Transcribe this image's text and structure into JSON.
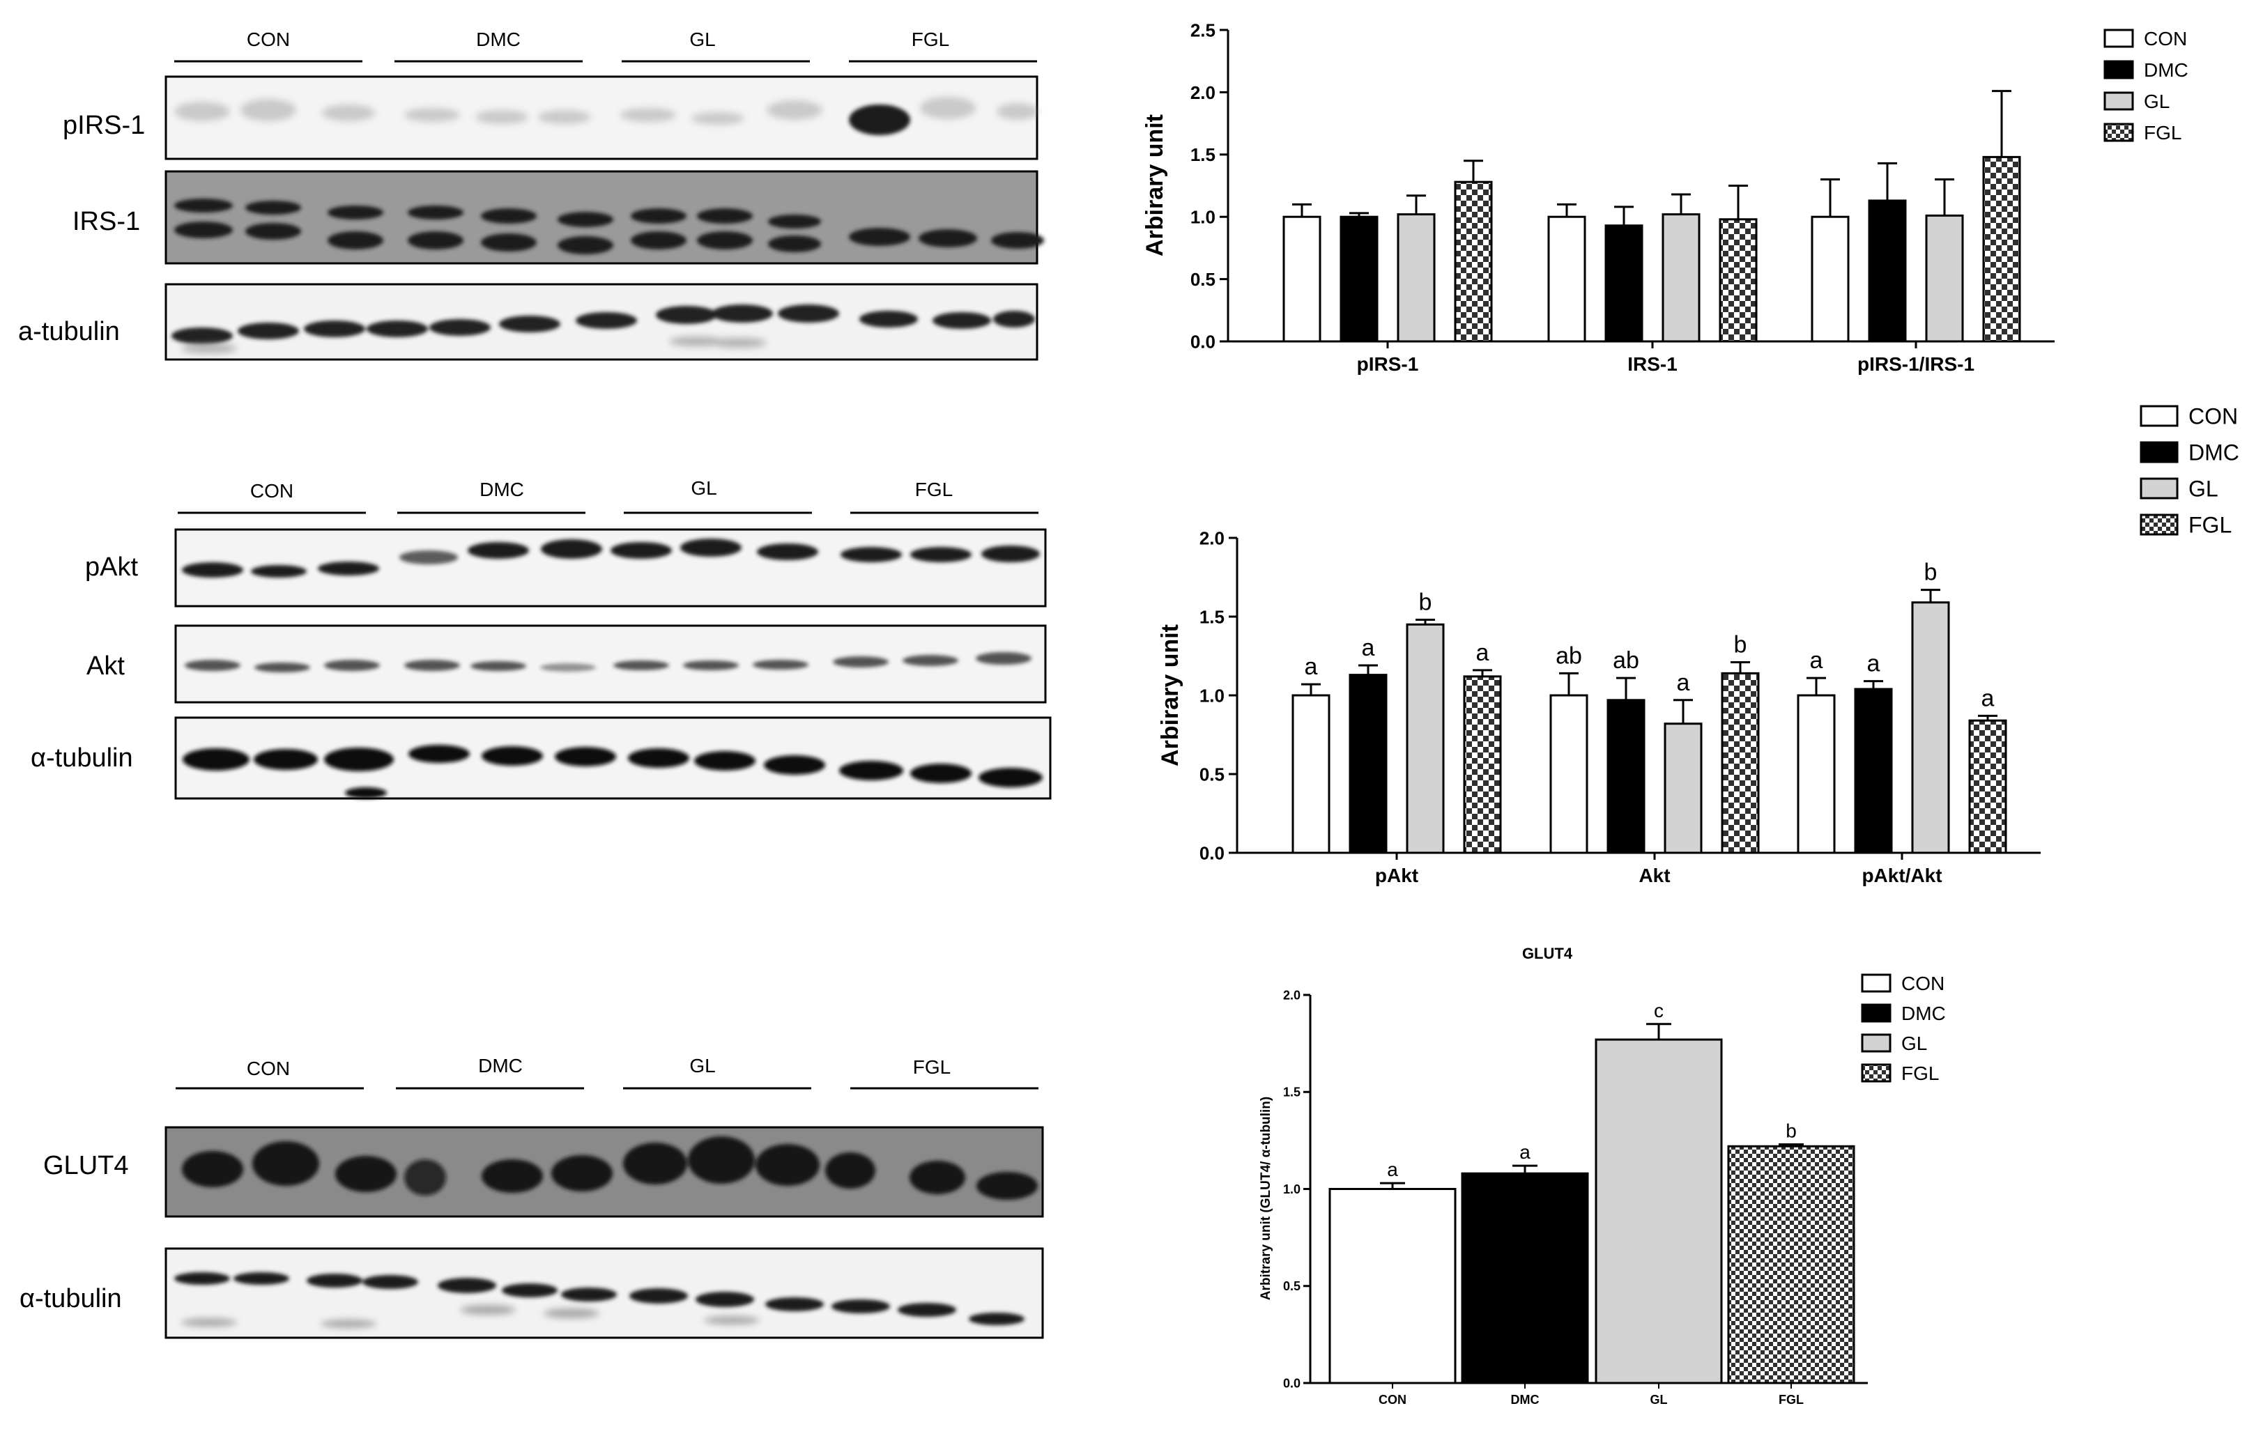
{
  "groups": [
    "CON",
    "DMC",
    "GL",
    "FGL"
  ],
  "colors": {
    "CON": "#ffffff",
    "DMC": "#000000",
    "GL": "#d3d3d3",
    "FGL": "checker"
  },
  "blots": [
    {
      "id": "irs",
      "group_labels": [
        "CON",
        "DMC",
        "GL",
        "FGL"
      ],
      "rows": [
        {
          "label": "pIRS-1",
          "style": "faint"
        },
        {
          "label": "IRS-1",
          "style": "dark"
        },
        {
          "label": "a-tubulin",
          "style": "light"
        }
      ]
    },
    {
      "id": "akt",
      "group_labels": [
        "CON",
        "DMC",
        "GL",
        "FGL"
      ],
      "rows": [
        {
          "label": "pAkt",
          "style": "mid"
        },
        {
          "label": "Akt",
          "style": "thin"
        },
        {
          "label": "α-tubulin",
          "style": "bold"
        }
      ]
    },
    {
      "id": "glut",
      "group_labels": [
        "CON",
        "DMC",
        "GL",
        "FGL"
      ],
      "rows": [
        {
          "label": "GLUT4",
          "style": "dark"
        },
        {
          "label": "α-tubulin",
          "style": "light"
        }
      ]
    }
  ],
  "chart_data": [
    {
      "type": "bar",
      "title": "",
      "ylabel": "Arbirary unit",
      "ylim": [
        0,
        2.5
      ],
      "yticks": [
        "0.0",
        "0.5",
        "1.0",
        "1.5",
        "2.0",
        "2.5"
      ],
      "categories": [
        "pIRS-1",
        "IRS-1",
        "pIRS-1/IRS-1"
      ],
      "series": [
        {
          "name": "CON",
          "values": [
            1.0,
            1.0,
            1.0
          ],
          "errors": [
            0.1,
            0.1,
            0.3
          ]
        },
        {
          "name": "DMC",
          "values": [
            1.0,
            0.93,
            1.13
          ],
          "errors": [
            0.03,
            0.15,
            0.3
          ]
        },
        {
          "name": "GL",
          "values": [
            1.02,
            1.02,
            1.01
          ],
          "errors": [
            0.15,
            0.16,
            0.29
          ]
        },
        {
          "name": "FGL",
          "values": [
            1.28,
            0.98,
            1.48
          ],
          "errors": [
            0.17,
            0.27,
            0.53
          ]
        }
      ],
      "labels": [],
      "legend": [
        "CON",
        "DMC",
        "GL",
        "FGL"
      ]
    },
    {
      "type": "bar",
      "title": "",
      "ylabel": "Arbirary unit",
      "ylim": [
        0,
        2.0
      ],
      "yticks": [
        "0.0",
        "0.5",
        "1.0",
        "1.5",
        "2.0"
      ],
      "categories": [
        "pAkt",
        "Akt",
        "pAkt/Akt"
      ],
      "series": [
        {
          "name": "CON",
          "values": [
            1.0,
            1.0,
            1.0
          ],
          "errors": [
            0.07,
            0.14,
            0.11
          ]
        },
        {
          "name": "DMC",
          "values": [
            1.13,
            0.97,
            1.04
          ],
          "errors": [
            0.06,
            0.14,
            0.05
          ]
        },
        {
          "name": "GL",
          "values": [
            1.45,
            0.82,
            1.59
          ],
          "errors": [
            0.03,
            0.15,
            0.08
          ]
        },
        {
          "name": "FGL",
          "values": [
            1.12,
            1.14,
            0.84
          ],
          "errors": [
            0.04,
            0.07,
            0.03
          ]
        }
      ],
      "labels": [
        [
          "a",
          "a",
          "b",
          "a"
        ],
        [
          "ab",
          "ab",
          "a",
          "b"
        ],
        [
          "a",
          "a",
          "b",
          "a"
        ]
      ],
      "legend": [
        "CON",
        "DMC",
        "GL",
        "FGL"
      ]
    },
    {
      "type": "bar",
      "title": "GLUT4",
      "ylabel": "Arbitrary unit (GLUT4/ α-tubulin)",
      "ylim": [
        0,
        2.0
      ],
      "yticks": [
        "0.0",
        "0.5",
        "1.0",
        "1.5",
        "2.0"
      ],
      "categories": [
        "CON",
        "DMC",
        "GL",
        "FGL"
      ],
      "series": [
        {
          "name": "GLUT4",
          "values": [
            1.0,
            1.08,
            1.77,
            1.22
          ],
          "errors": [
            0.03,
            0.04,
            0.08,
            0.01
          ]
        }
      ],
      "labels": [
        [
          "a",
          "a",
          "c",
          "b"
        ]
      ],
      "legend": [
        "CON",
        "DMC",
        "GL",
        "FGL"
      ]
    }
  ]
}
